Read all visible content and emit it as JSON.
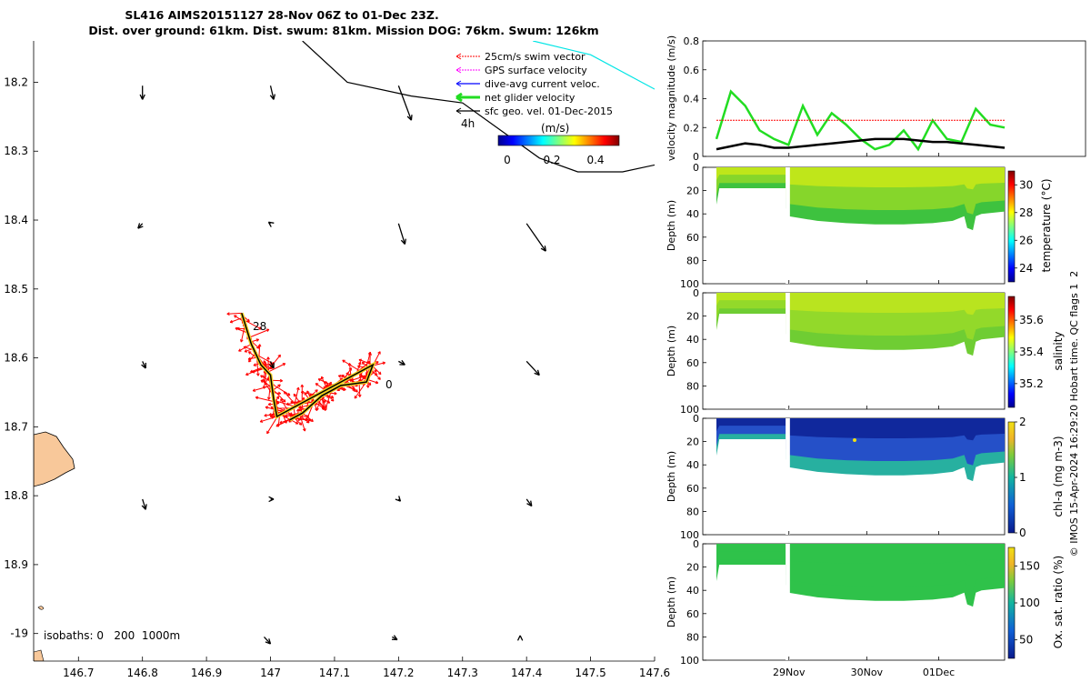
{
  "title": {
    "line1": "SL416 AIMS20151127 28-Nov 06Z to 01-Dec 23Z.",
    "line2": "Dist. over ground: 61km. Dist. swum: 81km. Mission DOG: 76km. Swum: 126km"
  },
  "copyright": "© IMOS 15-Apr-2024 16:29:20 Hobart time. QC flags 1  2",
  "colors": {
    "swim": "#ff0000",
    "gps": "#ff00ff",
    "diveavg": "#0000ff",
    "net": "#22dd22",
    "sfcgeo": "#000000",
    "cyan": "#00e5e5",
    "land": "#f8c89a"
  },
  "chart_data": [
    {
      "type": "map",
      "x_ticks": [
        "146.7",
        "146.8",
        "146.9",
        "147",
        "147.1",
        "147.2",
        "147.3",
        "147.4",
        "147.5",
        "147.6"
      ],
      "y_ticks": [
        "18.2",
        "18.3",
        "18.4",
        "18.5",
        "18.6",
        "18.7",
        "18.8",
        "18.9",
        "-19"
      ],
      "xlim": [
        146.63,
        147.6
      ],
      "ylim": [
        18.14,
        19.04
      ],
      "legend": {
        "position": "top-right",
        "entries": [
          "25cm/s swim vector",
          "GPS surface velocity",
          "dive-avg current veloc.",
          "net glider velocity",
          "sfc geo. vel. 01-Dec-2015"
        ]
      },
      "colorbar": {
        "label": "(m/s)",
        "ticks": [
          "0",
          "0.2",
          "0.4"
        ],
        "range": [
          0,
          0.5
        ]
      },
      "annotations": {
        "start_day": "28",
        "end_label": "0",
        "hour_label": "4h",
        "isobaths": "isobaths: 0   200  1000m"
      },
      "geo_vectors": [
        {
          "lon": 146.8,
          "lat": 18.205,
          "u": 0.0,
          "v": 0.02
        },
        {
          "lon": 147.0,
          "lat": 18.205,
          "u": 0.005,
          "v": 0.02
        },
        {
          "lon": 147.2,
          "lat": 18.205,
          "u": 0.02,
          "v": 0.05
        },
        {
          "lon": 146.8,
          "lat": 18.405,
          "u": -0.007,
          "v": 0.007
        },
        {
          "lon": 147.0,
          "lat": 18.405,
          "u": -0.003,
          "v": -0.002
        },
        {
          "lon": 147.2,
          "lat": 18.405,
          "u": 0.01,
          "v": 0.03
        },
        {
          "lon": 147.4,
          "lat": 18.405,
          "u": 0.03,
          "v": 0.04
        },
        {
          "lon": 146.8,
          "lat": 18.605,
          "u": 0.005,
          "v": 0.01
        },
        {
          "lon": 147.0,
          "lat": 18.605,
          "u": 0.005,
          "v": 0.01
        },
        {
          "lon": 147.2,
          "lat": 18.605,
          "u": 0.01,
          "v": 0.005
        },
        {
          "lon": 147.4,
          "lat": 18.605,
          "u": 0.02,
          "v": 0.02
        },
        {
          "lon": 146.8,
          "lat": 18.805,
          "u": 0.005,
          "v": 0.015
        },
        {
          "lon": 147.0,
          "lat": 18.805,
          "u": 0.005,
          "v": 0.0
        },
        {
          "lon": 147.2,
          "lat": 18.805,
          "u": 0.003,
          "v": 0.003
        },
        {
          "lon": 147.4,
          "lat": 18.805,
          "u": 0.008,
          "v": 0.01
        },
        {
          "lon": 146.99,
          "lat": 19.005,
          "u": 0.01,
          "v": 0.01
        },
        {
          "lon": 147.19,
          "lat": 19.005,
          "u": 0.008,
          "v": 0.004
        },
        {
          "lon": 147.39,
          "lat": 19.005,
          "u": 0.0,
          "v": -0.002
        }
      ],
      "glider_track": [
        [
          146.955,
          18.535
        ],
        [
          146.97,
          18.58
        ],
        [
          146.985,
          18.61
        ],
        [
          147.0,
          18.625
        ],
        [
          147.005,
          18.66
        ],
        [
          147.01,
          18.685
        ],
        [
          147.03,
          18.675
        ],
        [
          147.06,
          18.66
        ],
        [
          147.1,
          18.64
        ],
        [
          147.13,
          18.625
        ],
        [
          147.16,
          18.61
        ],
        [
          147.15,
          18.635
        ],
        [
          147.11,
          18.64
        ],
        [
          147.08,
          18.655
        ],
        [
          147.05,
          18.68
        ],
        [
          147.03,
          18.69
        ]
      ],
      "bathymetry_line": [
        [
          147.05,
          18.14
        ],
        [
          147.12,
          18.2
        ],
        [
          147.22,
          18.22
        ],
        [
          147.3,
          18.23
        ],
        [
          147.36,
          18.27
        ],
        [
          147.42,
          18.31
        ],
        [
          147.48,
          18.33
        ],
        [
          147.55,
          18.33
        ],
        [
          147.6,
          18.32
        ]
      ],
      "cyan_line": [
        [
          147.41,
          18.14
        ],
        [
          147.5,
          18.16
        ],
        [
          147.58,
          18.2
        ],
        [
          147.6,
          18.21
        ]
      ]
    },
    {
      "type": "line",
      "ylabel": "velocity magnitude (m/s)",
      "ylim": [
        0,
        0.8
      ],
      "y_ticks": [
        "0",
        "0.2",
        "0.4",
        "0.6",
        "0.8"
      ],
      "x": [
        0.0,
        0.05,
        0.1,
        0.15,
        0.2,
        0.25,
        0.3,
        0.35,
        0.4,
        0.45,
        0.5,
        0.55,
        0.6,
        0.65,
        0.7,
        0.75,
        0.8,
        0.85,
        0.9,
        0.95,
        1.0
      ],
      "series": [
        {
          "color": "#22dd22",
          "values": [
            0.12,
            0.45,
            0.35,
            0.18,
            0.12,
            0.08,
            0.35,
            0.15,
            0.3,
            0.22,
            0.12,
            0.05,
            0.08,
            0.18,
            0.05,
            0.25,
            0.12,
            0.1,
            0.33,
            0.22,
            0.2
          ]
        },
        {
          "color": "#ff0000",
          "values": [
            0.25,
            0.25,
            0.25,
            0.25,
            0.25,
            0.25,
            0.25,
            0.25,
            0.25,
            0.25,
            0.25,
            0.25,
            0.25,
            0.25,
            0.25,
            0.25,
            0.25,
            0.25,
            0.25,
            0.25,
            0.25
          ]
        },
        {
          "color": "#000000",
          "values": [
            0.05,
            0.07,
            0.09,
            0.08,
            0.06,
            0.06,
            0.07,
            0.08,
            0.09,
            0.1,
            0.11,
            0.12,
            0.12,
            0.12,
            0.11,
            0.1,
            0.1,
            0.09,
            0.08,
            0.07,
            0.06
          ]
        }
      ]
    },
    {
      "type": "heatmap",
      "ylabel": "Depth (m)",
      "cbar_label": "temperature (°C)",
      "ylim": [
        0,
        100
      ],
      "y_ticks": [
        "0",
        "20",
        "40",
        "60",
        "80",
        "100"
      ],
      "cbar_ticks": [
        "24",
        "26",
        "28",
        "30"
      ],
      "crange": [
        23,
        31
      ],
      "colors": [
        "#bfe61a",
        "#86d62b",
        "#3ec23f"
      ]
    },
    {
      "type": "heatmap",
      "ylabel": "Depth (m)",
      "cbar_label": "salinity",
      "ylim": [
        0,
        100
      ],
      "y_ticks": [
        "0",
        "20",
        "40",
        "60",
        "80",
        "100"
      ],
      "cbar_ticks": [
        "35.2",
        "35.4",
        "35.6"
      ],
      "crange": [
        35.05,
        35.75
      ],
      "colors": [
        "#b9e41f",
        "#93d92a",
        "#6fcd33"
      ]
    },
    {
      "type": "heatmap",
      "ylabel": "Depth (m)",
      "cbar_label": "chl-a (mg m-3)",
      "ylim": [
        0,
        100
      ],
      "y_ticks": [
        "0",
        "20",
        "40",
        "60",
        "80",
        "100"
      ],
      "cbar_ticks": [
        "0",
        "1",
        "2"
      ],
      "crange": [
        0,
        2
      ],
      "colors": [
        "#10289c",
        "#2550c8",
        "#27b0a0"
      ]
    },
    {
      "type": "heatmap",
      "ylabel": "Depth (m)",
      "cbar_label": "Ox. sat. ratio (%)",
      "ylim": [
        0,
        100
      ],
      "y_ticks": [
        "0",
        "20",
        "40",
        "60",
        "80",
        "100"
      ],
      "cbar_ticks": [
        "50",
        "100",
        "150"
      ],
      "crange": [
        25,
        175
      ],
      "colors": [
        "#2fc24a",
        "#2fc24a",
        "#2fc24a"
      ]
    }
  ],
  "time_axis": {
    "ticks": [
      "29Nov",
      "30Nov",
      "01Dec"
    ]
  }
}
